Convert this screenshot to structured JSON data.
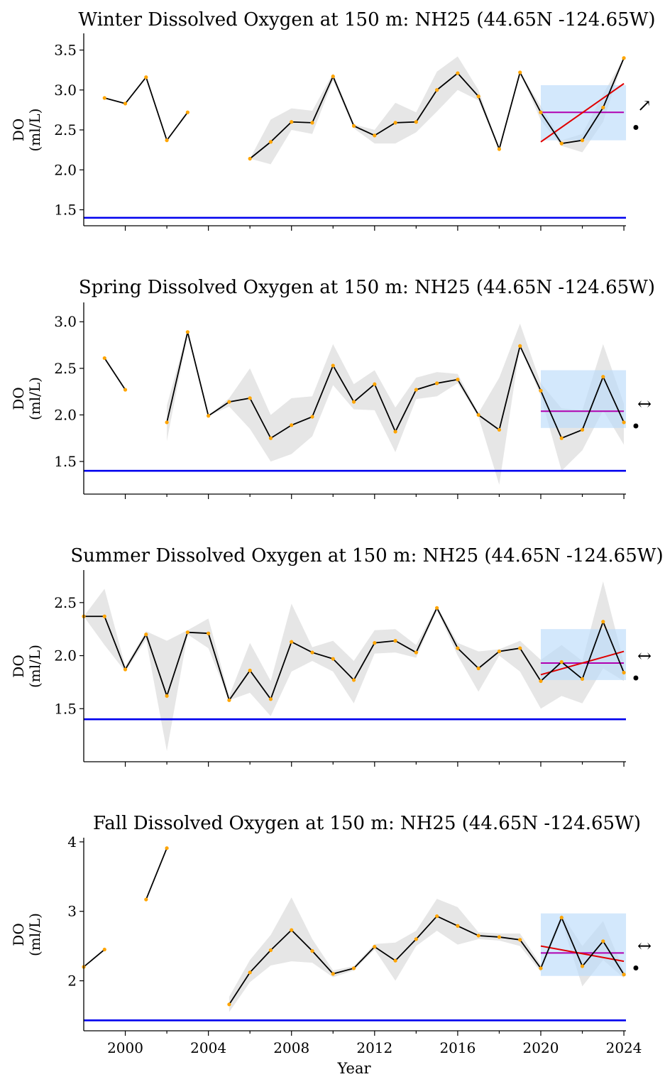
{
  "figure": {
    "xlabel": "Year"
  },
  "chart_data": [
    {
      "type": "line",
      "title": "Winter Dissolved Oxygen at 150 m: NH25 (44.65N -124.65W)",
      "ylabel_line1": "DO",
      "ylabel_line2": "(ml/L)",
      "xlim": [
        1998,
        2024.1
      ],
      "ylim": [
        1.3,
        3.7
      ],
      "yticks": [
        1.5,
        2.0,
        2.5,
        3.0,
        3.5
      ],
      "ytick_labels": [
        "1.5",
        "2.0",
        "2.5",
        "3.0",
        "3.5"
      ],
      "show_xtick_labels": false,
      "x": [
        1999,
        2000,
        2001,
        2002,
        2003,
        2004,
        2005,
        2006,
        2007,
        2008,
        2009,
        2010,
        2011,
        2012,
        2013,
        2014,
        2015,
        2016,
        2017,
        2018,
        2019,
        2020,
        2021,
        2022,
        2023,
        2024
      ],
      "values": [
        2.9,
        2.83,
        3.16,
        2.37,
        2.72,
        null,
        null,
        2.14,
        2.35,
        2.6,
        2.59,
        3.17,
        2.55,
        2.43,
        2.59,
        2.6,
        3.0,
        3.21,
        2.92,
        2.26,
        3.22,
        2.72,
        2.33,
        2.37,
        2.78,
        3.4
      ],
      "band_lower": [
        null,
        null,
        null,
        null,
        null,
        null,
        null,
        2.14,
        2.07,
        2.5,
        2.45,
        3.12,
        2.52,
        2.33,
        2.33,
        2.47,
        2.73,
        3.0,
        2.87,
        2.26,
        3.22,
        2.62,
        2.3,
        2.22,
        2.6,
        3.4
      ],
      "band_upper": [
        null,
        null,
        null,
        null,
        null,
        null,
        null,
        2.14,
        2.63,
        2.77,
        2.74,
        3.21,
        2.57,
        2.5,
        2.84,
        2.72,
        3.23,
        3.42,
        3.0,
        2.26,
        3.22,
        2.8,
        2.37,
        2.45,
        2.95,
        3.4
      ],
      "threshold": 1.4,
      "recent_window": [
        2020,
        2024
      ],
      "box_range": [
        2.37,
        3.06
      ],
      "recent_mean": 2.72,
      "trend_line": [
        2.35,
        3.08
      ],
      "trend_symbol": "↗",
      "status_symbol": "•"
    },
    {
      "type": "line",
      "title": "Spring Dissolved Oxygen at 150 m: NH25 (44.65N -124.65W)",
      "ylabel_line1": "DO",
      "ylabel_line2": "(ml/L)",
      "xlim": [
        1998,
        2024.1
      ],
      "ylim": [
        1.15,
        3.2
      ],
      "yticks": [
        1.5,
        2.0,
        2.5,
        3.0
      ],
      "ytick_labels": [
        "1.5",
        "2.0",
        "2.5",
        "3.0"
      ],
      "show_xtick_labels": false,
      "x": [
        1999,
        2000,
        2001,
        2002,
        2003,
        2004,
        2005,
        2006,
        2007,
        2008,
        2009,
        2010,
        2011,
        2012,
        2013,
        2014,
        2015,
        2016,
        2017,
        2018,
        2019,
        2020,
        2021,
        2022,
        2023,
        2024
      ],
      "values": [
        2.61,
        2.27,
        null,
        1.92,
        2.89,
        1.99,
        2.14,
        2.18,
        1.75,
        1.89,
        1.98,
        2.53,
        2.14,
        2.33,
        1.82,
        2.27,
        2.34,
        2.38,
        2.0,
        1.84,
        2.74,
        2.26,
        1.75,
        1.84,
        2.41,
        1.92
      ],
      "band_lower": [
        null,
        null,
        null,
        1.72,
        2.87,
        1.99,
        2.09,
        1.85,
        1.5,
        1.58,
        1.77,
        2.32,
        2.06,
        2.05,
        1.6,
        2.17,
        2.2,
        2.34,
        1.98,
        1.25,
        2.74,
        2.2,
        1.4,
        1.62,
        2.05,
        1.68
      ],
      "band_upper": [
        null,
        null,
        null,
        2.1,
        2.91,
        1.99,
        2.18,
        2.5,
        2.0,
        2.18,
        2.2,
        2.76,
        2.33,
        2.48,
        2.08,
        2.4,
        2.46,
        2.44,
        2.02,
        2.4,
        2.98,
        2.34,
        2.07,
        2.05,
        2.76,
        2.12
      ],
      "threshold": 1.4,
      "recent_window": [
        2020,
        2024
      ],
      "box_range": [
        1.86,
        2.48
      ],
      "recent_mean": 2.04,
      "trend_line": null,
      "trend_symbol": "↔",
      "status_symbol": "•"
    },
    {
      "type": "line",
      "title": "Summer Dissolved Oxygen at 150 m: NH25 (44.65N -124.65W)",
      "ylabel_line1": "DO",
      "ylabel_line2": "(ml/L)",
      "xlim": [
        1998,
        2024.1
      ],
      "ylim": [
        1.0,
        2.8
      ],
      "yticks": [
        1.5,
        2.0,
        2.5
      ],
      "ytick_labels": [
        "1.5",
        "2.0",
        "2.5"
      ],
      "show_xtick_labels": false,
      "x": [
        1998,
        1999,
        2000,
        2001,
        2002,
        2003,
        2004,
        2005,
        2006,
        2007,
        2008,
        2009,
        2010,
        2011,
        2012,
        2013,
        2014,
        2015,
        2016,
        2017,
        2018,
        2019,
        2020,
        2021,
        2022,
        2023,
        2024
      ],
      "values": [
        2.37,
        2.37,
        1.87,
        2.2,
        1.62,
        2.22,
        2.21,
        1.58,
        1.86,
        1.59,
        2.13,
        2.03,
        1.97,
        1.77,
        2.12,
        2.14,
        2.03,
        2.45,
        2.07,
        1.88,
        2.04,
        2.07,
        1.76,
        1.94,
        1.78,
        2.32,
        1.84
      ],
      "band_lower": [
        2.37,
        2.1,
        1.85,
        2.15,
        1.1,
        2.2,
        2.07,
        1.58,
        1.65,
        1.43,
        1.85,
        1.95,
        1.85,
        1.55,
        2.02,
        2.03,
        1.98,
        2.43,
        2.0,
        1.66,
        2.0,
        1.85,
        1.5,
        1.62,
        1.55,
        1.88,
        1.76
      ],
      "band_upper": [
        2.37,
        2.63,
        1.9,
        2.23,
        2.14,
        2.24,
        2.35,
        1.62,
        2.12,
        1.76,
        2.49,
        2.08,
        2.14,
        1.95,
        2.24,
        2.25,
        2.1,
        2.47,
        2.12,
        2.04,
        2.06,
        2.14,
        1.96,
        2.1,
        1.95,
        2.7,
        1.93
      ],
      "threshold": 1.4,
      "recent_window": [
        2020,
        2024
      ],
      "box_range": [
        1.77,
        2.25
      ],
      "recent_mean": 1.93,
      "trend_line": [
        1.82,
        2.04
      ],
      "trend_symbol": "↔",
      "status_symbol": "•"
    },
    {
      "type": "line",
      "title": "Fall Dissolved Oxygen at 150 m: NH25 (44.65N -124.65W)",
      "ylabel_line1": "DO",
      "ylabel_line2": "(ml/L)",
      "xlim": [
        1998,
        2024.1
      ],
      "ylim": [
        1.28,
        4.05
      ],
      "yticks": [
        2,
        3,
        4
      ],
      "ytick_labels": [
        "2",
        "3",
        "4"
      ],
      "show_xtick_labels": true,
      "xticks": [
        2000,
        2004,
        2008,
        2012,
        2016,
        2020,
        2024
      ],
      "xtick_labels": [
        "2000",
        "2004",
        "2008",
        "2012",
        "2016",
        "2020",
        "2024"
      ],
      "x": [
        1998,
        1999,
        2000,
        2001,
        2002,
        2003,
        2004,
        2005,
        2006,
        2007,
        2008,
        2009,
        2010,
        2011,
        2012,
        2013,
        2014,
        2015,
        2016,
        2017,
        2018,
        2019,
        2020,
        2021,
        2022,
        2023,
        2024
      ],
      "values": [
        2.2,
        2.45,
        null,
        3.17,
        3.91,
        null,
        null,
        1.66,
        2.12,
        2.44,
        2.73,
        2.43,
        2.1,
        2.18,
        2.49,
        2.29,
        2.6,
        2.93,
        2.79,
        2.65,
        2.63,
        2.59,
        2.18,
        2.91,
        2.21,
        2.57,
        2.09
      ],
      "band_lower": [
        null,
        null,
        null,
        null,
        null,
        null,
        null,
        1.55,
        1.98,
        2.22,
        2.28,
        2.26,
        2.05,
        2.15,
        2.45,
        2.0,
        2.5,
        2.72,
        2.52,
        2.6,
        2.58,
        2.5,
        2.13,
        2.86,
        1.92,
        2.3,
        2.04
      ],
      "band_upper": [
        null,
        null,
        null,
        null,
        null,
        null,
        null,
        1.77,
        2.3,
        2.66,
        3.2,
        2.6,
        2.15,
        2.21,
        2.53,
        2.55,
        2.72,
        3.18,
        3.06,
        2.7,
        2.68,
        2.68,
        2.23,
        2.96,
        2.5,
        2.86,
        2.14
      ],
      "threshold": 1.43,
      "recent_window": [
        2020,
        2024
      ],
      "box_range": [
        2.07,
        2.97
      ],
      "recent_mean": 2.4,
      "trend_line": [
        2.5,
        2.28
      ],
      "trend_symbol": "↔",
      "status_symbol": "•"
    }
  ]
}
